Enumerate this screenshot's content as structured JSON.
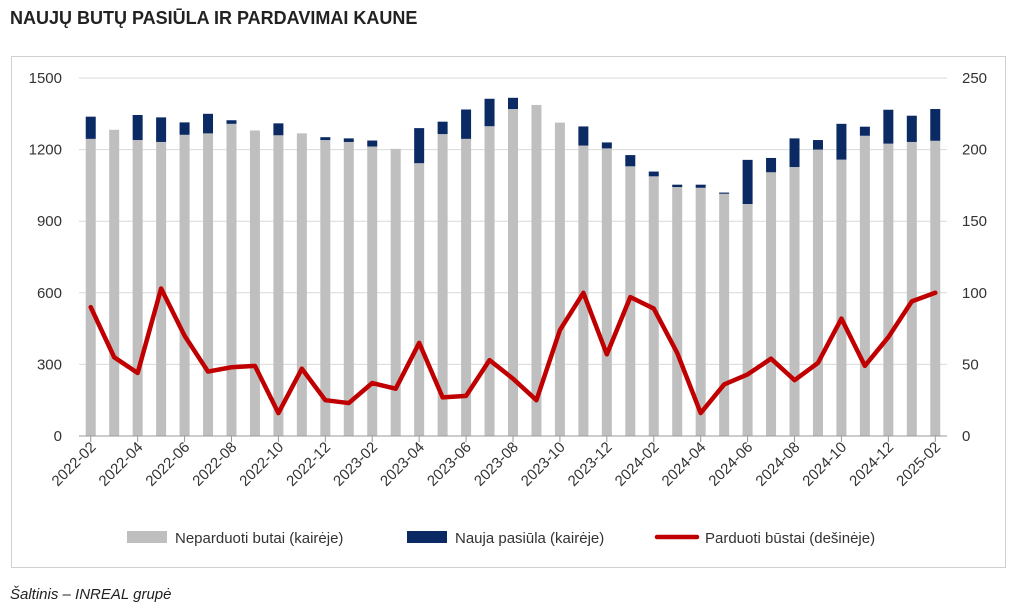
{
  "title": "NAUJŲ BUTŲ PASIŪLA IR PARDAVIMAI KAUNE",
  "source": "Šaltinis – INREAL grupė",
  "colors": {
    "unsold": "#bfbfbf",
    "new_supply": "#0b2a63",
    "sold": "#c00000"
  },
  "chart_data": {
    "type": "bar",
    "stacked": true,
    "categories": [
      "2022-02",
      "2022-03",
      "2022-04",
      "2022-05",
      "2022-06",
      "2022-07",
      "2022-08",
      "2022-09",
      "2022-10",
      "2022-11",
      "2022-12",
      "2023-01",
      "2023-02",
      "2023-03",
      "2023-04",
      "2023-05",
      "2023-06",
      "2023-07",
      "2023-08",
      "2023-09",
      "2023-10",
      "2023-11",
      "2023-12",
      "2024-01",
      "2024-02",
      "2024-03",
      "2024-04",
      "2024-05",
      "2024-06",
      "2024-07",
      "2024-08",
      "2024-09",
      "2024-10",
      "2024-11",
      "2024-12",
      "2025-01",
      "2025-02"
    ],
    "tick_labels": [
      "2022-02",
      "2022-04",
      "2022-06",
      "2022-08",
      "2022-10",
      "2022-12",
      "2023-02",
      "2023-04",
      "2023-06",
      "2023-08",
      "2023-10",
      "2023-12",
      "2024-02",
      "2024-04",
      "2024-06",
      "2024-08",
      "2024-10",
      "2024-12",
      "2025-02"
    ],
    "series": [
      {
        "name": "Neparduoti butai (kairėje)",
        "axis": "left",
        "kind": "bar",
        "values": [
          1245,
          1283,
          1240,
          1232,
          1262,
          1268,
          1308,
          1280,
          1260,
          1268,
          1240,
          1232,
          1213,
          1203,
          1143,
          1265,
          1245,
          1298,
          1370,
          1387,
          1313,
          1217,
          1205,
          1130,
          1088,
          1043,
          1040,
          1015,
          972,
          1105,
          1127,
          1200,
          1158,
          1258,
          1225,
          1232,
          1237
        ]
      },
      {
        "name": "Nauja pasiūla (kairėje)",
        "axis": "left",
        "kind": "bar",
        "values": [
          93,
          0,
          105,
          103,
          52,
          82,
          15,
          0,
          50,
          0,
          12,
          15,
          25,
          0,
          147,
          52,
          123,
          115,
          47,
          0,
          0,
          80,
          25,
          47,
          20,
          10,
          13,
          5,
          185,
          60,
          120,
          40,
          150,
          38,
          142,
          110,
          133
        ]
      },
      {
        "name": "Parduoti būstai (dešinėje)",
        "axis": "right",
        "kind": "line",
        "values": [
          90,
          55,
          44,
          103,
          70,
          45,
          48,
          49,
          16,
          47,
          25,
          23,
          37,
          33,
          65,
          27,
          28,
          53,
          40,
          25,
          74,
          100,
          57,
          97,
          89,
          58,
          16,
          36,
          43,
          54,
          39,
          51,
          82,
          49,
          69,
          94,
          100
        ]
      }
    ],
    "y_left": {
      "min": 0,
      "max": 1500,
      "ticks": [
        0,
        300,
        600,
        900,
        1200,
        1500
      ]
    },
    "y_right": {
      "min": 0,
      "max": 250,
      "ticks": [
        0,
        50,
        100,
        150,
        200,
        250
      ]
    },
    "grid": true,
    "legend_position": "bottom"
  }
}
